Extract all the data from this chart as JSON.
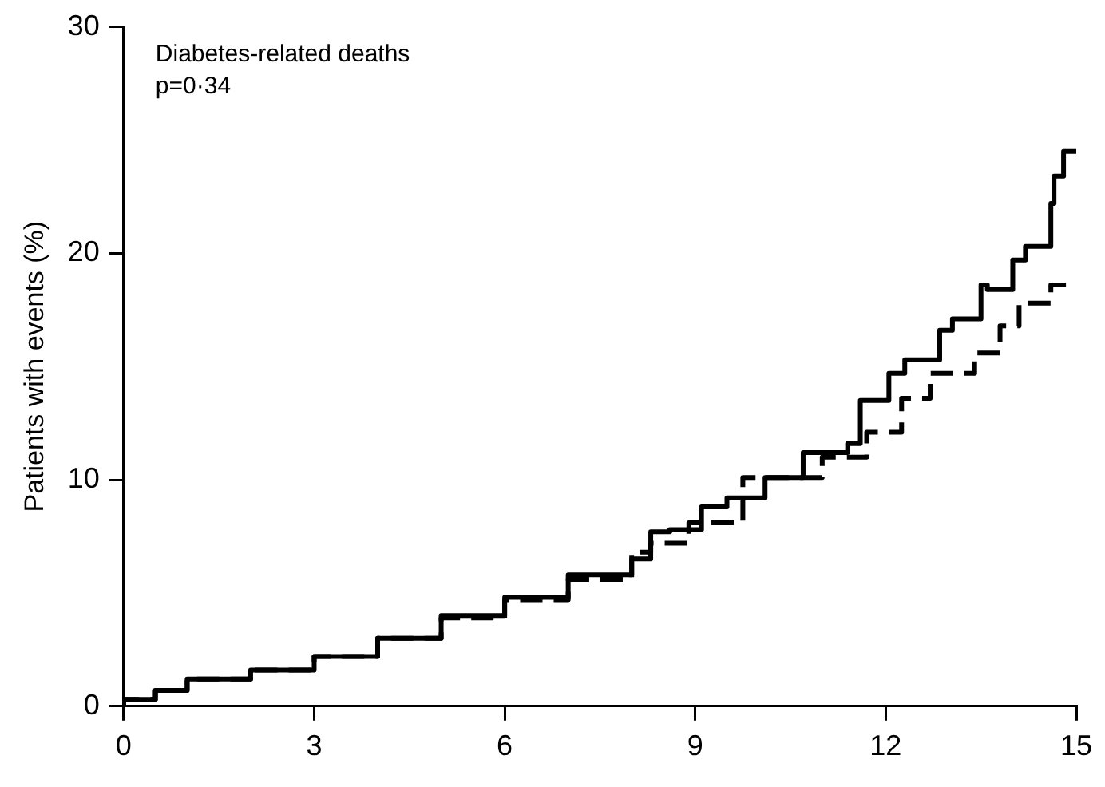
{
  "chart_data": {
    "type": "step",
    "ylabel": "Patients with events (%)",
    "annotations": [
      "Diabetes-related deaths",
      "p=0·34"
    ],
    "xlim": [
      0,
      15
    ],
    "xticks": [
      0,
      3,
      6,
      9,
      12,
      15
    ],
    "ylim": [
      0,
      30
    ],
    "yticks": [
      0,
      10,
      20,
      30
    ],
    "grid": false,
    "legend": false,
    "marker": "none",
    "series": [
      {
        "color": "#000000",
        "line_style": "solid",
        "x": [
          0,
          0.5,
          1,
          2,
          3,
          4,
          5,
          6,
          7,
          8,
          8.3,
          8.6,
          9.1,
          9.5,
          10.1,
          10.7,
          11.4,
          11.6,
          12.05,
          12.3,
          12.85,
          13.05,
          13.5,
          13.6,
          14.0,
          14.2,
          14.6,
          14.65,
          14.8,
          15.0
        ],
        "values": [
          0,
          0.3,
          0.7,
          1.2,
          1.6,
          2.2,
          3.0,
          4.0,
          4.8,
          5.8,
          6.5,
          7.7,
          7.8,
          8.8,
          9.2,
          10.1,
          11.2,
          11.6,
          13.5,
          14.7,
          15.3,
          16.6,
          17.1,
          18.6,
          18.4,
          19.7,
          20.3,
          22.2,
          23.4,
          24.5
        ]
      },
      {
        "color": "#000000",
        "line_style": "dashed",
        "x": [
          0,
          0.5,
          1,
          2,
          3,
          4,
          5,
          6,
          7,
          8,
          8.3,
          8.9,
          9.75,
          11.0,
          11.7,
          12.25,
          12.7,
          13.4,
          13.8,
          14.1,
          14.6,
          15.0
        ],
        "values": [
          0,
          0.3,
          0.7,
          1.2,
          1.6,
          2.2,
          3.0,
          3.9,
          4.7,
          5.6,
          6.8,
          7.2,
          8.1,
          10.1,
          11.0,
          12.1,
          13.6,
          14.7,
          15.6,
          16.8,
          17.8,
          18.6
        ]
      }
    ]
  }
}
